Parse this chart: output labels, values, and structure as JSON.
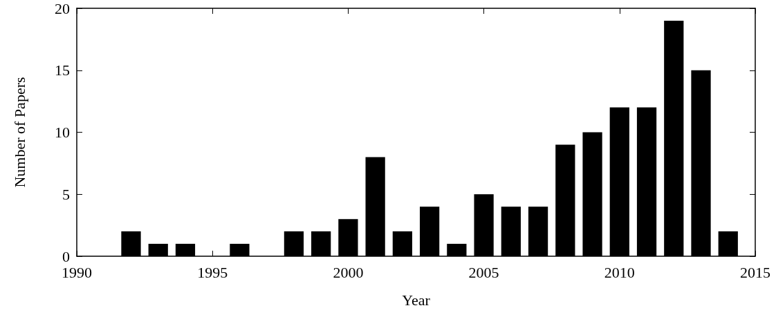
{
  "chart_data": {
    "type": "bar",
    "xlabel": "Year",
    "ylabel": "Number of Papers",
    "x": [
      1992,
      1993,
      1994,
      1996,
      1998,
      1999,
      2000,
      2001,
      2002,
      2003,
      2004,
      2005,
      2006,
      2007,
      2008,
      2009,
      2010,
      2011,
      2012,
      2013,
      2014
    ],
    "values": [
      2,
      1,
      1,
      1,
      2,
      2,
      3,
      8,
      2,
      4,
      1,
      5,
      4,
      4,
      9,
      10,
      12,
      12,
      19,
      15,
      2
    ],
    "color": "#000000",
    "xlim": [
      1990,
      2015
    ],
    "xticks": [
      1990,
      1995,
      2000,
      2005,
      2010,
      2015
    ],
    "ylim": [
      0,
      20
    ],
    "yticks": [
      0,
      5,
      10,
      15,
      20
    ]
  }
}
